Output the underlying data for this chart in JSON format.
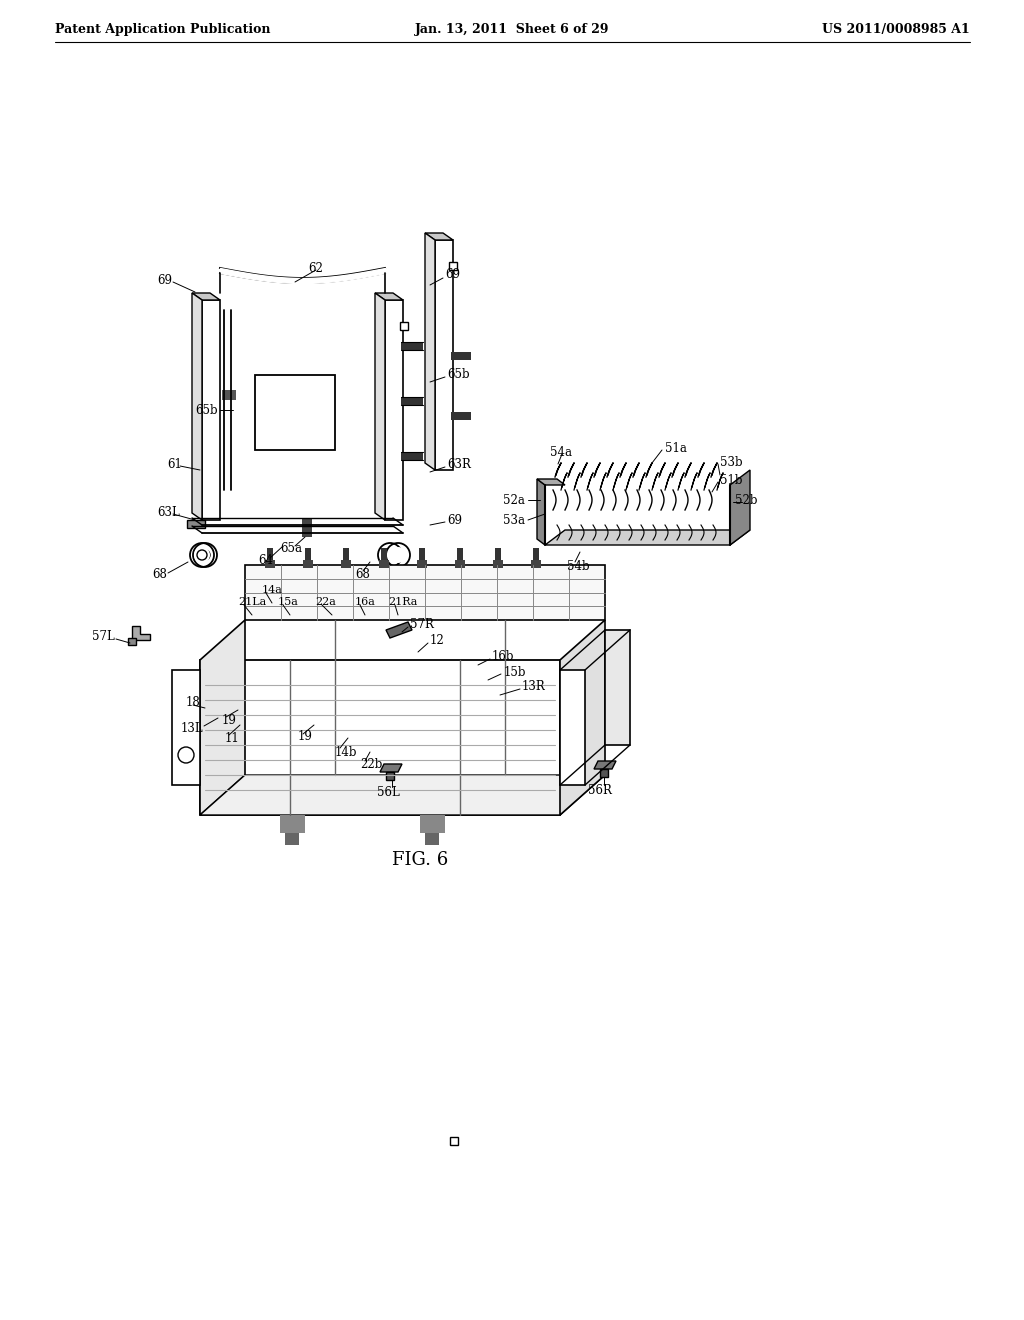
{
  "bg_color": "#ffffff",
  "header_left": "Patent Application Publication",
  "header_center": "Jan. 13, 2011  Sheet 6 of 29",
  "header_right": "US 2011/0008985 A1",
  "figure_label": "FIG. 6"
}
